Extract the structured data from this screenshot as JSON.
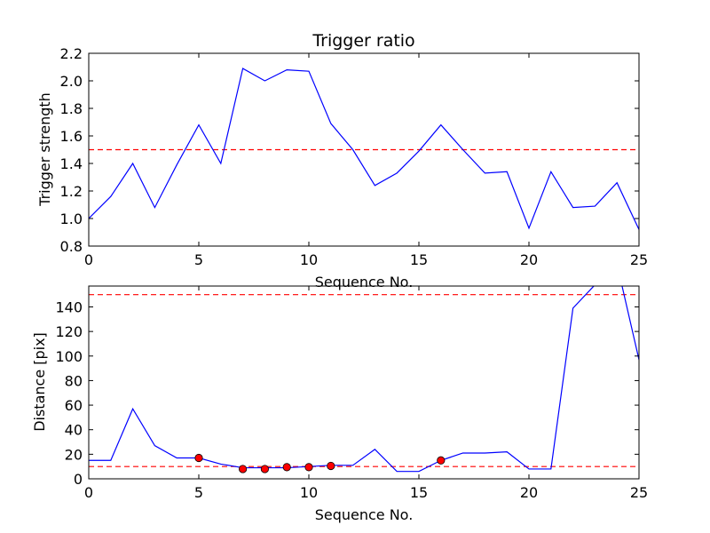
{
  "chart_data": [
    {
      "type": "line",
      "title": "Trigger ratio",
      "xlabel": "Sequence No.",
      "ylabel": "Trigger strength",
      "xlim": [
        0,
        25
      ],
      "ylim": [
        0.8,
        2.2
      ],
      "xticks": [
        "0",
        "5",
        "10",
        "15",
        "20",
        "25"
      ],
      "yticks": [
        "0.8",
        "1.0",
        "1.2",
        "1.4",
        "1.6",
        "1.8",
        "2.0",
        "2.2"
      ],
      "series": [
        {
          "color": "#0000ff",
          "x": [
            0,
            1,
            2,
            3,
            4,
            5,
            6,
            7,
            8,
            9,
            10,
            11,
            12,
            13,
            14,
            15,
            16,
            17,
            18,
            19,
            20,
            21,
            22,
            23,
            24,
            25
          ],
          "y": [
            1.0,
            1.16,
            1.4,
            1.08,
            1.39,
            1.68,
            1.4,
            2.09,
            2.0,
            2.08,
            2.07,
            1.69,
            1.5,
            1.24,
            1.33,
            1.49,
            1.68,
            1.5,
            1.33,
            1.34,
            0.93,
            1.34,
            1.08,
            1.09,
            1.26,
            0.92
          ]
        }
      ],
      "hlines": [
        {
          "y": 1.5,
          "color": "#ff0000",
          "style": "dashed"
        }
      ]
    },
    {
      "type": "line",
      "title": "",
      "xlabel": "Sequence No.",
      "ylabel": "Distance [pix]",
      "xlim": [
        0,
        25
      ],
      "ylim": [
        0,
        157
      ],
      "xticks": [
        "0",
        "5",
        "10",
        "15",
        "20",
        "25"
      ],
      "yticks": [
        "0",
        "20",
        "40",
        "60",
        "80",
        "100",
        "120",
        "140"
      ],
      "series": [
        {
          "color": "#0000ff",
          "x": [
            0,
            1,
            2,
            3,
            4,
            5,
            6,
            7,
            8,
            9,
            10,
            11,
            12,
            13,
            14,
            15,
            16,
            17,
            18,
            19,
            20,
            21,
            22,
            23,
            24,
            25
          ],
          "y": [
            15,
            15,
            57,
            27,
            17,
            17,
            12,
            9,
            9,
            9,
            10,
            11,
            11,
            24,
            6,
            6,
            15,
            21,
            21,
            22,
            8,
            8,
            139,
            158,
            175,
            97
          ]
        }
      ],
      "markers": {
        "color": "#ff0000",
        "x": [
          5,
          7,
          8,
          9,
          10,
          11,
          16
        ],
        "y": [
          17,
          8,
          8,
          9.5,
          9.5,
          10.5,
          15
        ]
      },
      "hlines": [
        {
          "y": 150,
          "color": "#ff0000",
          "style": "dashed"
        },
        {
          "y": 10,
          "color": "#ff0000",
          "style": "dashed"
        }
      ]
    }
  ]
}
